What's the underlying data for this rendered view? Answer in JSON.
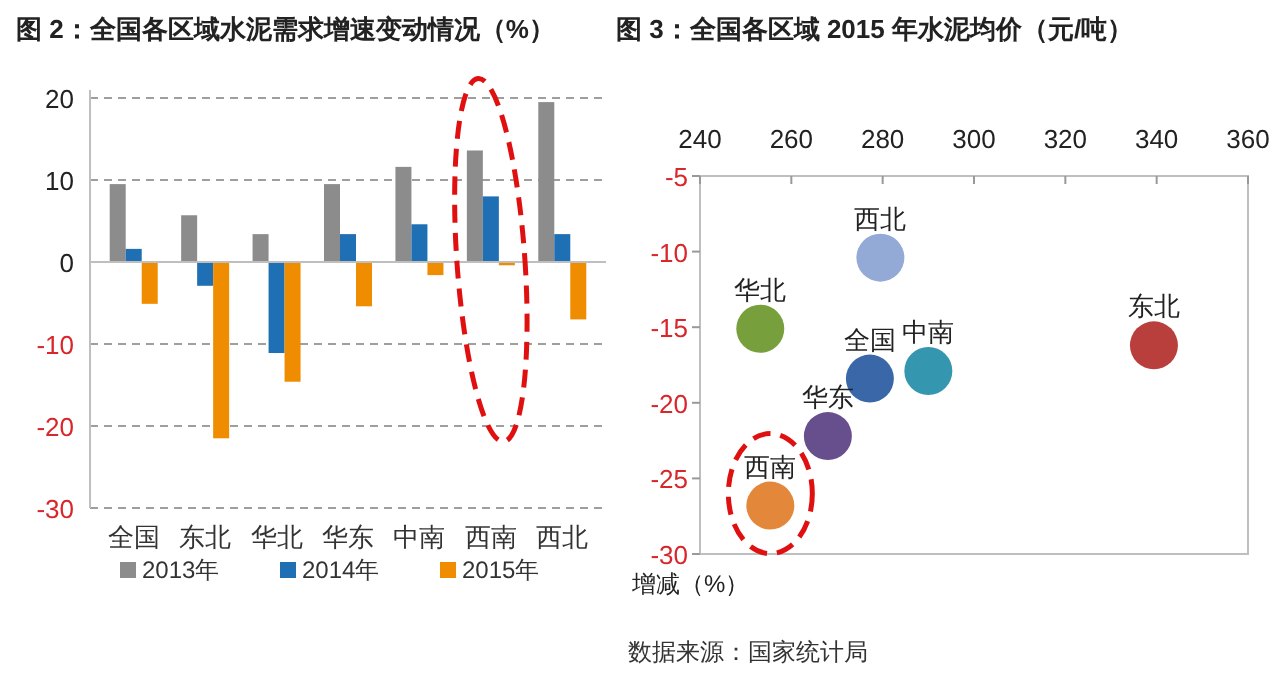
{
  "chart_data": [
    {
      "type": "bar",
      "title": "图 2：全国各区域水泥需求增速变动情况（%）",
      "categories": [
        "全国",
        "东北",
        "华北",
        "华东",
        "中南",
        "西南",
        "西北"
      ],
      "series": [
        {
          "name": "2013年",
          "color": "#8c8c8c",
          "values": [
            9.5,
            5.7,
            3.4,
            9.5,
            11.6,
            13.6,
            19.5
          ]
        },
        {
          "name": "2014年",
          "color": "#1f6fb4",
          "values": [
            1.6,
            -2.9,
            -11.1,
            3.4,
            4.6,
            8.0,
            3.4
          ]
        },
        {
          "name": "2015年",
          "color": "#f08c00",
          "values": [
            -5.1,
            -21.5,
            -14.6,
            -5.4,
            -1.6,
            -0.4,
            -7.0
          ]
        }
      ],
      "ylim": [
        -30,
        20
      ],
      "yticks": [
        -30,
        -20,
        -10,
        0,
        10,
        20
      ],
      "grid": "y",
      "legend": "bottom"
    },
    {
      "type": "scatter",
      "title": "图 3：全国各区域 2015 年水泥均价（元/吨）",
      "ylabel": "增减（%）",
      "series": [
        {
          "name": "西北",
          "color": "#93a9d6",
          "x": [
            279.5
          ],
          "values": [
            -10.4
          ]
        },
        {
          "name": "华北",
          "color": "#77a03c",
          "x": [
            253.2
          ],
          "values": [
            -15.1
          ]
        },
        {
          "name": "全国",
          "color": "#3a67a8",
          "x": [
            277.2
          ],
          "values": [
            -18.4
          ]
        },
        {
          "name": "中南",
          "color": "#3596b0",
          "x": [
            290.0
          ],
          "values": [
            -17.9
          ]
        },
        {
          "name": "东北",
          "color": "#b83f3b",
          "x": [
            339.4
          ],
          "values": [
            -16.2
          ]
        },
        {
          "name": "华东",
          "color": "#674f8e",
          "x": [
            268.0
          ],
          "values": [
            -22.2
          ]
        },
        {
          "name": "西南",
          "color": "#e3883a",
          "x": [
            255.4
          ],
          "values": [
            -26.8
          ]
        }
      ],
      "xlim": [
        240,
        360
      ],
      "xticks": [
        240,
        260,
        280,
        300,
        320,
        340,
        360
      ],
      "ylim": [
        -30,
        -5
      ],
      "yticks": [
        -30,
        -25,
        -20,
        -15,
        -10,
        -5
      ],
      "marker": "circle",
      "annotations": [
        "数据来源：国家统计局"
      ]
    }
  ]
}
